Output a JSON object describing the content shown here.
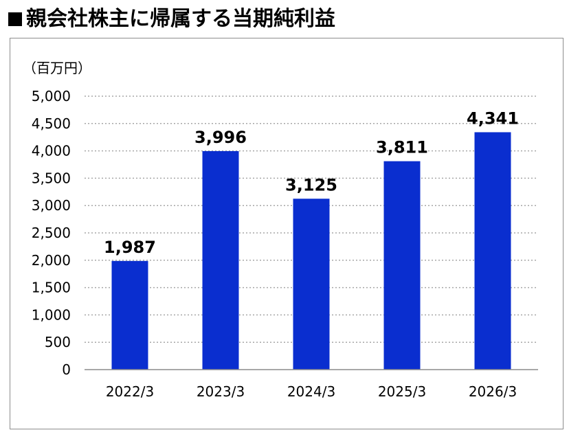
{
  "title": "親会社株主に帰属する当期純利益",
  "title_marker": "■",
  "chart_data": {
    "type": "bar",
    "unit_label": "（百万円）",
    "categories": [
      "2022/3",
      "2023/3",
      "2024/3",
      "2025/3",
      "2026/3"
    ],
    "values": [
      1987,
      3996,
      3125,
      3811,
      4341
    ],
    "data_labels": [
      "1,987",
      "3,996",
      "3,125",
      "3,811",
      "4,341"
    ],
    "ylim": [
      0,
      5000
    ],
    "yticks": [
      0,
      500,
      1000,
      1500,
      2000,
      2500,
      3000,
      3500,
      4000,
      4500,
      5000
    ],
    "ytick_labels": [
      "0",
      "500",
      "1,000",
      "1,500",
      "2,000",
      "2,500",
      "3,000",
      "3,500",
      "4,000",
      "4,500",
      "5,000"
    ],
    "grid": "horizontal dotted",
    "bar_color": "#0a2ecf",
    "grid_color": "#a6a6a6",
    "axis_color": "#8c8c8c"
  }
}
